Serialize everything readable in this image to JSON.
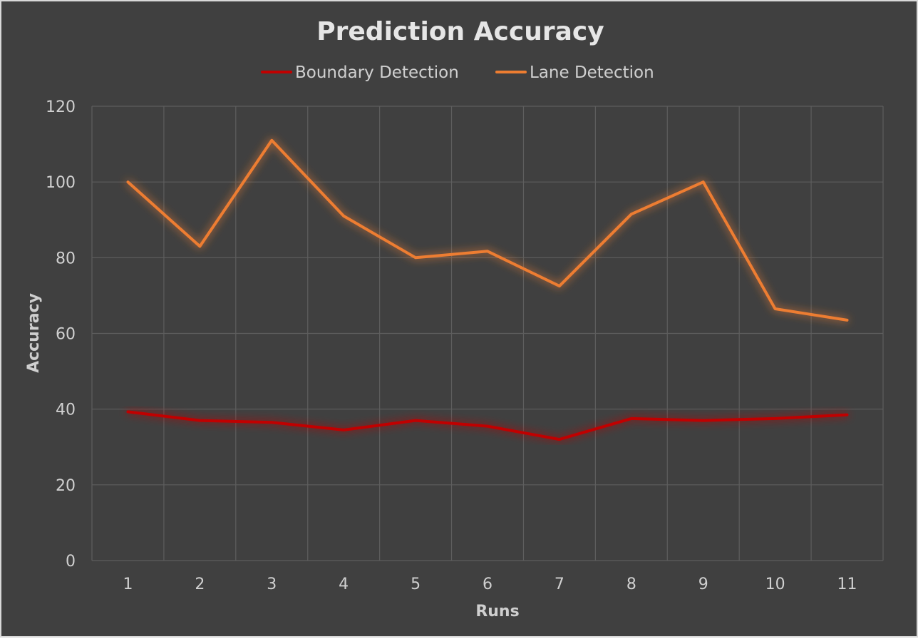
{
  "chart_data": {
    "type": "line",
    "title": "Prediction Accuracy",
    "xlabel": "Runs",
    "ylabel": "Accuracy",
    "categories": [
      "1",
      "2",
      "3",
      "4",
      "5",
      "6",
      "7",
      "8",
      "9",
      "10",
      "11"
    ],
    "ylim": [
      0,
      120
    ],
    "yticks": [
      "0",
      "20",
      "40",
      "60",
      "80",
      "100",
      "120"
    ],
    "grid": true,
    "legend_position": "top",
    "series": [
      {
        "name": "Boundary Detection",
        "color": "#c00000",
        "values": [
          39.3,
          37,
          36.5,
          34.5,
          37,
          35.5,
          32,
          37.5,
          37,
          37.5,
          38.5
        ]
      },
      {
        "name": "Lane Detection",
        "color": "#ed7d31",
        "values": [
          100,
          83,
          111,
          91,
          80,
          81.7,
          72.5,
          91.5,
          100,
          66.5,
          63.5
        ]
      }
    ]
  }
}
